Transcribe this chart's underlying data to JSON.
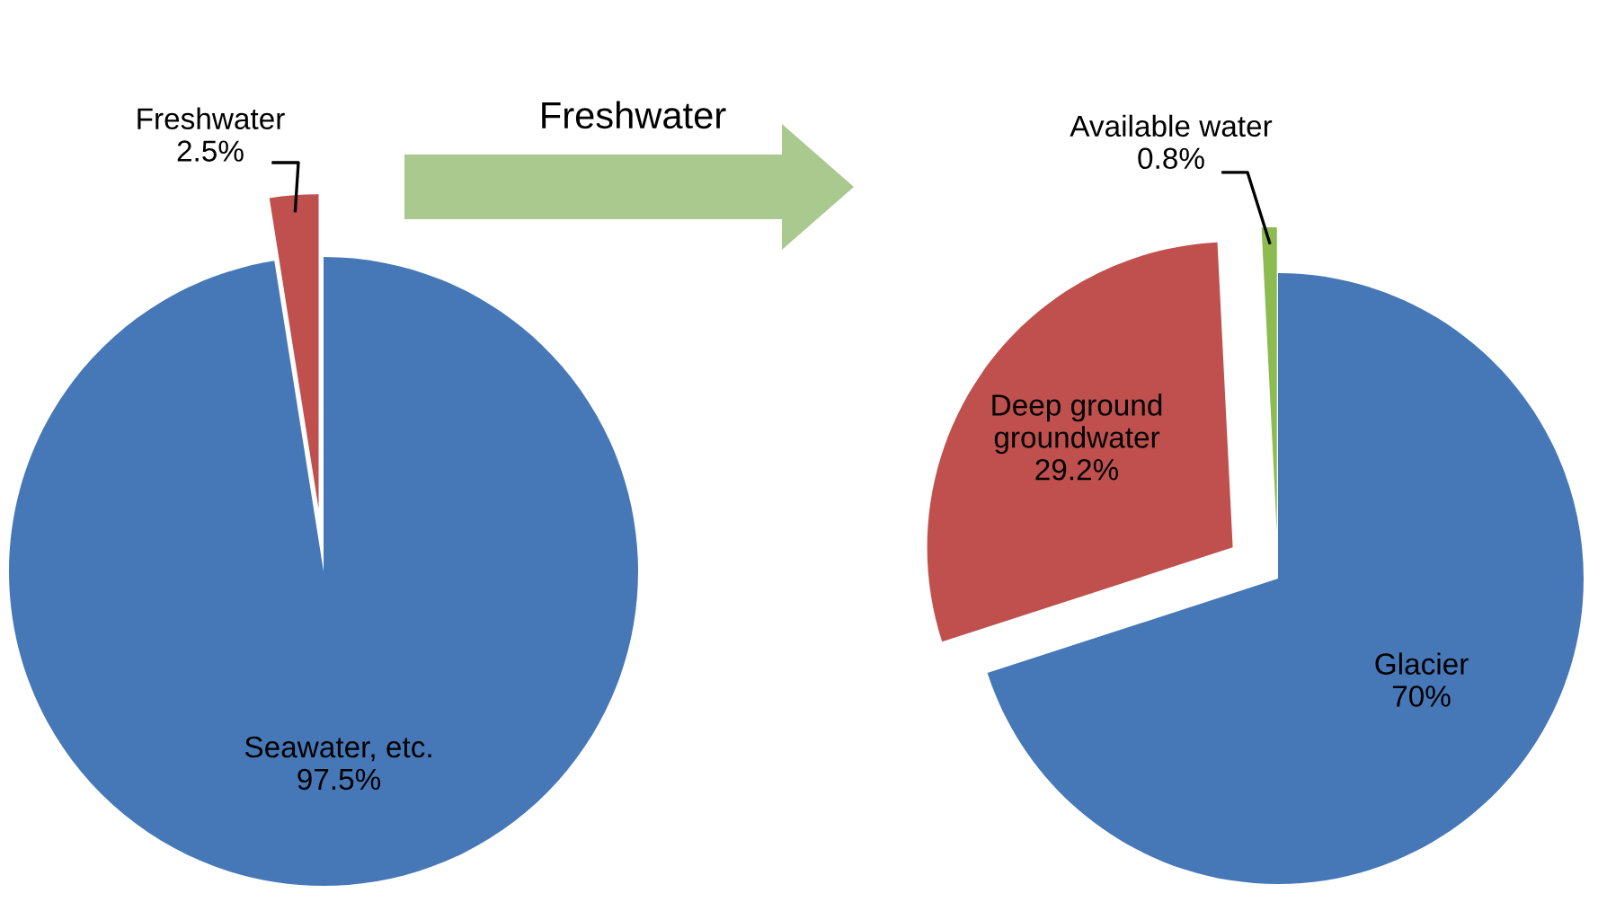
{
  "chart_data": [
    {
      "type": "pie",
      "categories": [
        "Freshwater",
        "Seawater, etc."
      ],
      "values": [
        2.5,
        97.5
      ],
      "value_labels": [
        "2.5%",
        "97.5%"
      ],
      "colors": [
        "#c0504d",
        "#4678b8"
      ],
      "annotations": [
        "Freshwater"
      ]
    },
    {
      "type": "pie",
      "categories": [
        "Glacier",
        "Deep ground groundwater",
        "Available water"
      ],
      "values": [
        70,
        29.2,
        0.8
      ],
      "value_labels": [
        "70%",
        "29.2%",
        "0.8%"
      ],
      "colors": [
        "#4678b8",
        "#c0504d",
        "#8cbb4f"
      ]
    }
  ]
}
